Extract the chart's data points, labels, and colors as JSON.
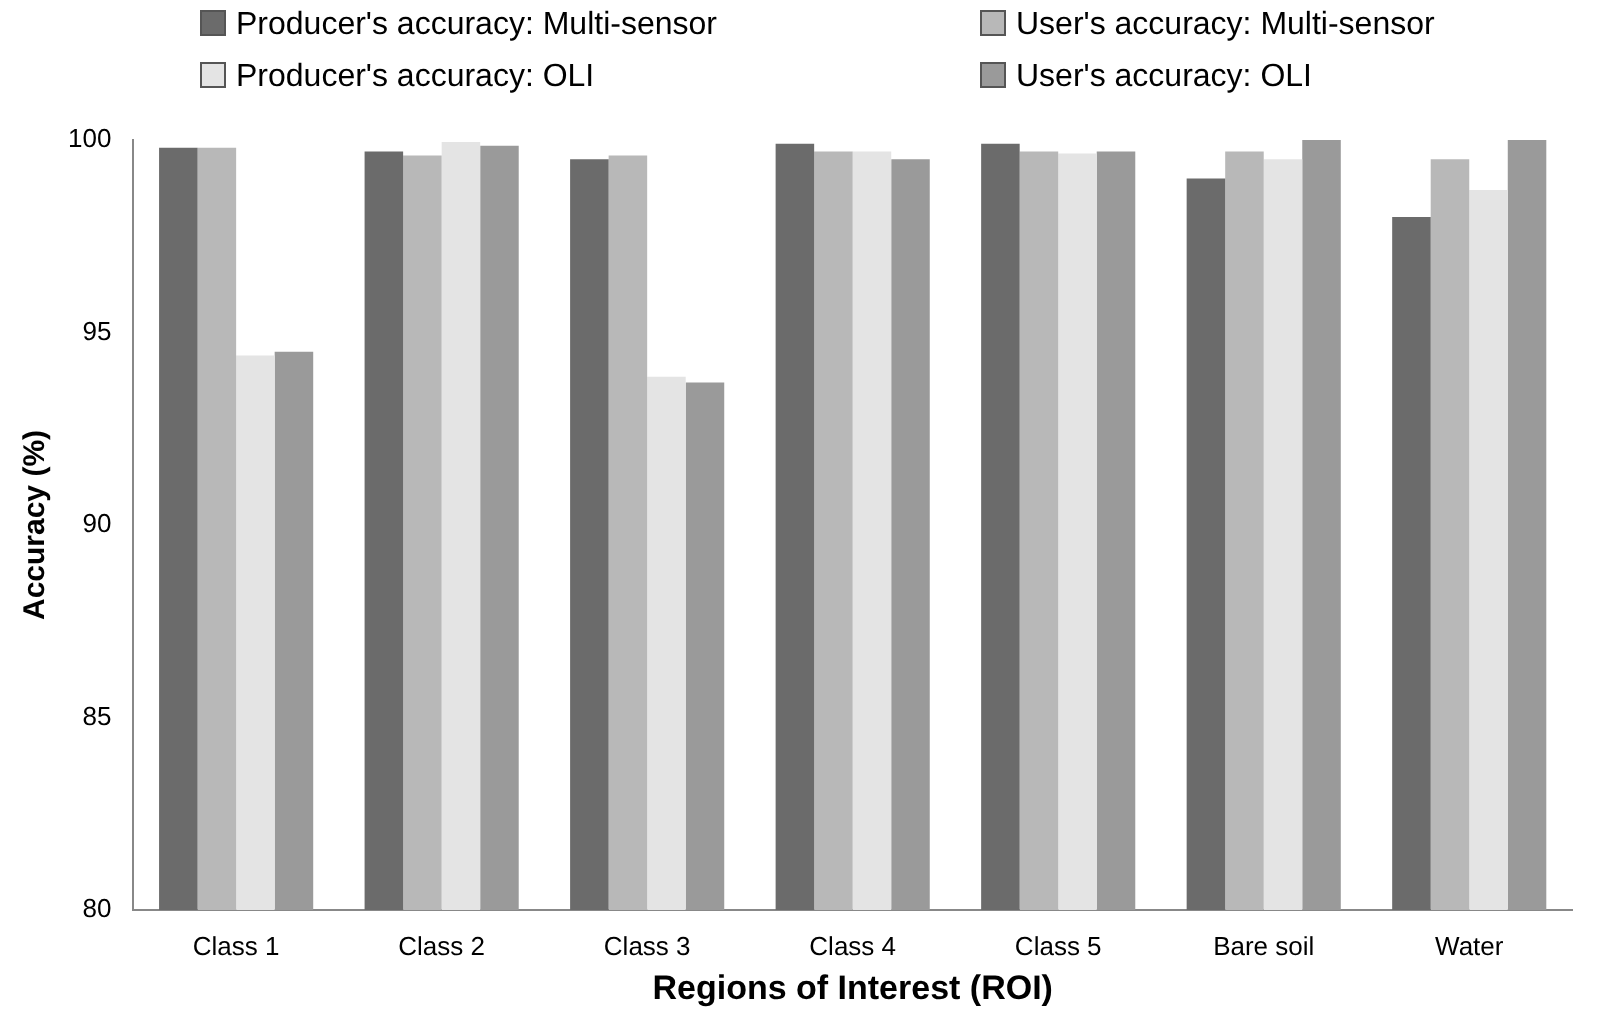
{
  "chart_data": {
    "type": "bar",
    "xlabel": "Regions of Interest (ROI)",
    "ylabel": "Accuracy (%)",
    "categories": [
      "Class 1",
      "Class 2",
      "Class 3",
      "Class 4",
      "Class 5",
      "Bare soil",
      "Water"
    ],
    "series": [
      {
        "name": "Producer's accuracy: Multi-sensor",
        "color": "#6b6b6b",
        "values": [
          99.8,
          99.7,
          99.5,
          99.9,
          99.9,
          99.0,
          98.0
        ]
      },
      {
        "name": "User's accuracy: Multi-sensor",
        "color": "#b8b8b8",
        "values": [
          99.8,
          99.6,
          99.6,
          99.7,
          99.7,
          99.7,
          99.5
        ]
      },
      {
        "name": "Producer's accuracy: OLI",
        "color": "#e4e4e4",
        "values": [
          94.4,
          99.95,
          93.85,
          99.7,
          99.65,
          99.5,
          98.7
        ]
      },
      {
        "name": "User's accuracy: OLI",
        "color": "#9a9a9a",
        "values": [
          94.5,
          99.85,
          93.7,
          99.5,
          99.7,
          100,
          100
        ]
      }
    ],
    "ylim": [
      80,
      100
    ],
    "yticks": [
      80,
      85,
      90,
      95,
      100
    ],
    "grid": false,
    "legend": "top"
  }
}
